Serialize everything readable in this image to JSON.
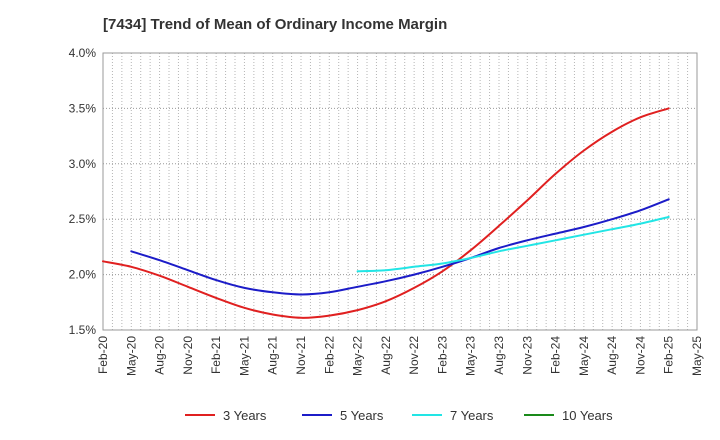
{
  "chart_data": {
    "type": "line",
    "title": "[7434]  Trend of Mean of Ordinary Income Margin",
    "xlabel": "",
    "ylabel": "",
    "x_tick_labels": [
      "Feb-20",
      "May-20",
      "Aug-20",
      "Nov-20",
      "Feb-21",
      "May-21",
      "Aug-21",
      "Nov-21",
      "Feb-22",
      "May-22",
      "Aug-22",
      "Nov-22",
      "Feb-23",
      "May-23",
      "Aug-23",
      "Nov-23",
      "Feb-24",
      "May-24",
      "Aug-24",
      "Nov-24",
      "Feb-25",
      "May-25"
    ],
    "y_tick_labels": [
      "1.5%",
      "2.0%",
      "2.5%",
      "3.0%",
      "3.5%",
      "4.0%"
    ],
    "ylim": [
      1.5,
      4.0
    ],
    "y_unit": "%",
    "grid": true,
    "legend_position": "bottom",
    "series": [
      {
        "name": "3 Years",
        "color": "#e02020",
        "x": [
          "Feb-20",
          "May-20",
          "Aug-20",
          "Nov-20",
          "Feb-21",
          "May-21",
          "Aug-21",
          "Nov-21",
          "Feb-22",
          "May-22",
          "Aug-22",
          "Nov-22",
          "Feb-23",
          "May-23",
          "Aug-23",
          "Nov-23",
          "Feb-24",
          "May-24",
          "Aug-24",
          "Nov-24",
          "Feb-25"
        ],
        "values": [
          2.12,
          2.07,
          1.99,
          1.89,
          1.79,
          1.7,
          1.64,
          1.61,
          1.63,
          1.68,
          1.76,
          1.88,
          2.03,
          2.22,
          2.44,
          2.67,
          2.91,
          3.12,
          3.29,
          3.42,
          3.5
        ]
      },
      {
        "name": "5 Years",
        "color": "#1c1cc8",
        "x": [
          "May-20",
          "Aug-20",
          "Nov-20",
          "Feb-21",
          "May-21",
          "Aug-21",
          "Nov-21",
          "Feb-22",
          "May-22",
          "Aug-22",
          "Nov-22",
          "Feb-23",
          "May-23",
          "Aug-23",
          "Nov-23",
          "Feb-24",
          "May-24",
          "Aug-24",
          "Nov-24",
          "Feb-25"
        ],
        "values": [
          2.21,
          2.13,
          2.04,
          1.95,
          1.88,
          1.84,
          1.82,
          1.84,
          1.89,
          1.94,
          2.0,
          2.07,
          2.15,
          2.24,
          2.31,
          2.37,
          2.43,
          2.5,
          2.58,
          2.68
        ]
      },
      {
        "name": "7 Years",
        "color": "#22e5e5",
        "x": [
          "May-22",
          "Aug-22",
          "Nov-22",
          "Feb-23",
          "May-23",
          "Aug-23",
          "Nov-23",
          "Feb-24",
          "May-24",
          "Aug-24",
          "Nov-24",
          "Feb-25"
        ],
        "values": [
          2.03,
          2.04,
          2.07,
          2.1,
          2.15,
          2.21,
          2.26,
          2.31,
          2.36,
          2.41,
          2.46,
          2.52
        ]
      },
      {
        "name": "10 Years",
        "color": "#1a8a1a",
        "x": [],
        "values": []
      }
    ]
  }
}
